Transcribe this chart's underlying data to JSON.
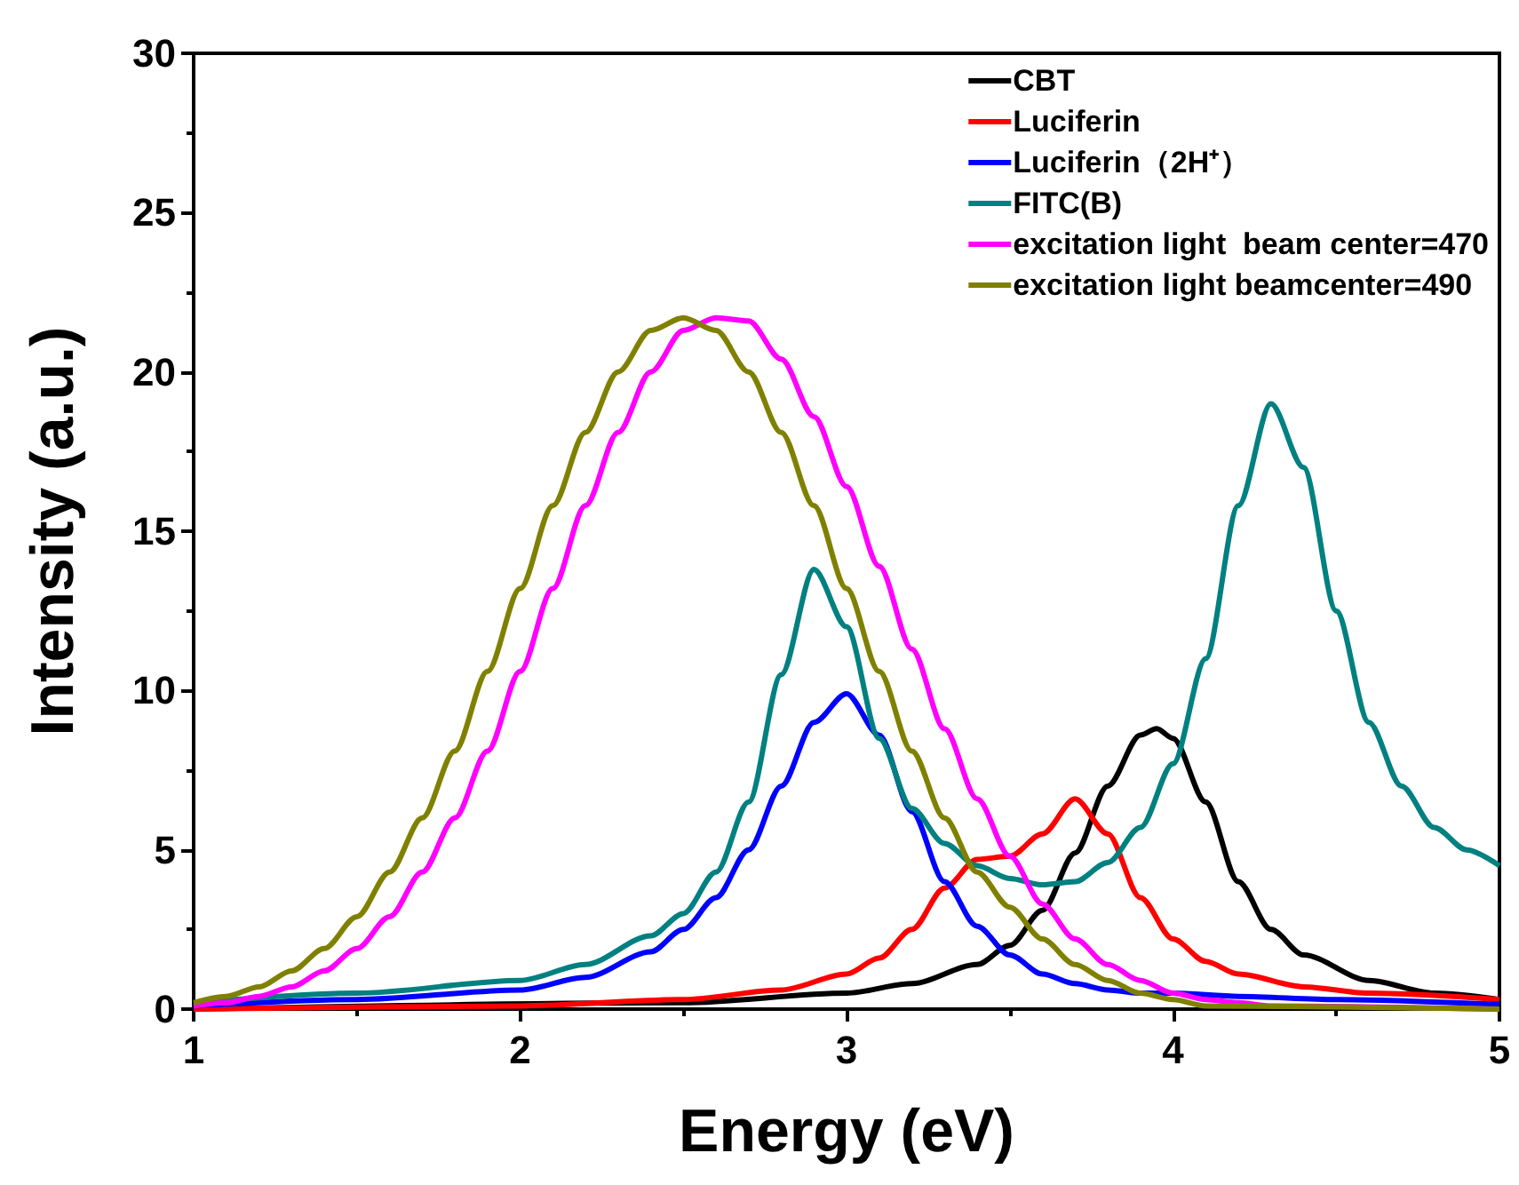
{
  "chart_data": {
    "type": "line",
    "xlabel": "Energy (eV)",
    "ylabel": "Intensity (a.u.)",
    "xlim": [
      1,
      5
    ],
    "ylim": [
      0,
      30
    ],
    "xticks": [
      1,
      2,
      3,
      4,
      5
    ],
    "yticks": [
      0,
      5,
      10,
      15,
      20,
      25,
      30
    ],
    "grid": false,
    "legend": "top right",
    "marker": "none",
    "line_style": "solid",
    "series": [
      {
        "name": "CBT",
        "color": "#000000",
        "x": [
          1.0,
          2.5,
          3.0,
          3.2,
          3.4,
          3.5,
          3.6,
          3.7,
          3.8,
          3.9,
          3.95,
          4.0,
          4.1,
          4.2,
          4.3,
          4.4,
          4.6,
          4.8,
          5.0
        ],
        "values": [
          0,
          0.2,
          0.5,
          0.8,
          1.4,
          2.0,
          3.1,
          4.9,
          7.0,
          8.6,
          8.8,
          8.5,
          6.5,
          4.0,
          2.5,
          1.7,
          0.9,
          0.5,
          0.3
        ]
      },
      {
        "name": "Luciferin",
        "color": "#ff0000",
        "x": [
          1.0,
          2.0,
          2.5,
          2.8,
          3.0,
          3.1,
          3.2,
          3.3,
          3.4,
          3.5,
          3.6,
          3.7,
          3.8,
          3.9,
          4.0,
          4.1,
          4.2,
          4.4,
          4.6,
          5.0
        ],
        "values": [
          0,
          0.1,
          0.3,
          0.6,
          1.1,
          1.6,
          2.5,
          3.8,
          4.7,
          4.8,
          5.5,
          6.6,
          5.5,
          3.5,
          2.2,
          1.5,
          1.1,
          0.7,
          0.5,
          0.3
        ]
      },
      {
        "name": "Luciferin（2H⁺）",
        "color": "#0000ff",
        "x": [
          1.0,
          1.5,
          2.0,
          2.2,
          2.4,
          2.5,
          2.6,
          2.7,
          2.8,
          2.9,
          3.0,
          3.1,
          3.2,
          3.3,
          3.4,
          3.5,
          3.6,
          3.7,
          3.8,
          3.9,
          4.0,
          4.2,
          4.5,
          5.0
        ],
        "values": [
          0.1,
          0.3,
          0.6,
          1.0,
          1.8,
          2.5,
          3.5,
          5.0,
          7.0,
          9.0,
          9.9,
          8.6,
          6.2,
          4.0,
          2.6,
          1.7,
          1.1,
          0.8,
          0.6,
          0.5,
          0.5,
          0.4,
          0.3,
          0.15
        ]
      },
      {
        "name": "FITC(B)",
        "color": "#008080",
        "x": [
          1.0,
          1.5,
          2.0,
          2.2,
          2.4,
          2.5,
          2.6,
          2.7,
          2.8,
          2.9,
          3.0,
          3.1,
          3.2,
          3.3,
          3.4,
          3.5,
          3.6,
          3.7,
          3.8,
          3.9,
          4.0,
          4.1,
          4.2,
          4.3,
          4.4,
          4.5,
          4.6,
          4.7,
          4.8,
          4.9,
          5.0
        ],
        "values": [
          0.2,
          0.5,
          0.9,
          1.4,
          2.3,
          3.0,
          4.3,
          6.5,
          10.5,
          13.8,
          12.0,
          8.5,
          6.3,
          5.2,
          4.5,
          4.1,
          3.9,
          4.0,
          4.6,
          5.7,
          7.7,
          11.0,
          15.8,
          19.0,
          17.0,
          12.5,
          9.0,
          7.0,
          5.7,
          5.0,
          4.5
        ]
      },
      {
        "name": "excitation light  beam center=470",
        "color": "#ff00ff",
        "x": [
          1.0,
          1.1,
          1.2,
          1.3,
          1.4,
          1.5,
          1.6,
          1.7,
          1.8,
          1.9,
          2.0,
          2.1,
          2.2,
          2.3,
          2.4,
          2.5,
          2.6,
          2.7,
          2.8,
          2.9,
          3.0,
          3.1,
          3.2,
          3.3,
          3.4,
          3.5,
          3.6,
          3.7,
          3.8,
          3.9,
          4.0,
          4.1,
          4.2,
          4.3,
          5.0
        ],
        "values": [
          0.1,
          0.2,
          0.4,
          0.7,
          1.2,
          1.9,
          2.9,
          4.3,
          6.0,
          8.1,
          10.6,
          13.2,
          15.8,
          18.1,
          20.0,
          21.3,
          21.7,
          21.6,
          20.4,
          18.6,
          16.4,
          13.9,
          11.3,
          8.8,
          6.6,
          4.8,
          3.3,
          2.2,
          1.4,
          0.9,
          0.5,
          0.3,
          0.2,
          0.1,
          0
        ]
      },
      {
        "name": "excitation light beamcenter=490",
        "color": "#808000",
        "x": [
          1.0,
          1.1,
          1.2,
          1.3,
          1.4,
          1.5,
          1.6,
          1.7,
          1.8,
          1.9,
          2.0,
          2.1,
          2.2,
          2.3,
          2.4,
          2.5,
          2.6,
          2.7,
          2.8,
          2.9,
          3.0,
          3.1,
          3.2,
          3.3,
          3.4,
          3.5,
          3.6,
          3.7,
          3.8,
          3.9,
          4.0,
          4.1,
          5.0
        ],
        "values": [
          0.2,
          0.4,
          0.7,
          1.2,
          1.9,
          2.9,
          4.3,
          6.0,
          8.1,
          10.6,
          13.2,
          15.8,
          18.1,
          20.0,
          21.3,
          21.7,
          21.3,
          20.0,
          18.1,
          15.8,
          13.2,
          10.6,
          8.1,
          6.0,
          4.3,
          3.2,
          2.2,
          1.4,
          0.9,
          0.5,
          0.3,
          0.1,
          0
        ]
      }
    ]
  }
}
